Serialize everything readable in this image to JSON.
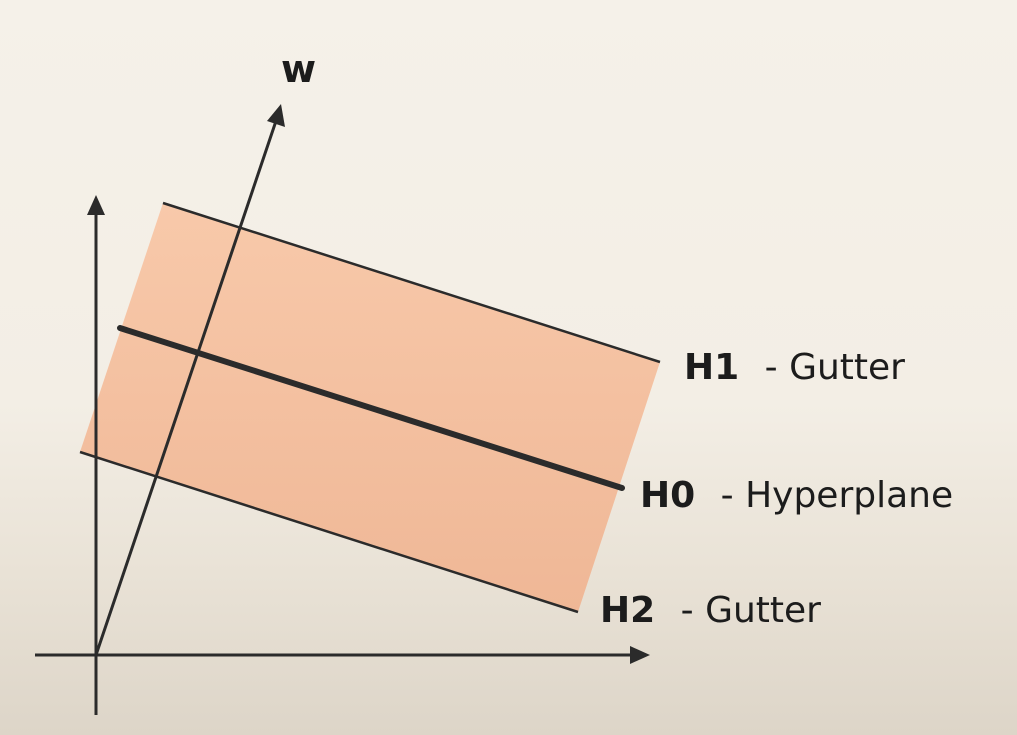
{
  "vector_label": "w",
  "lines": [
    {
      "id": "H1",
      "code": "H1",
      "desc": "- Gutter"
    },
    {
      "id": "H0",
      "code": "H0",
      "desc": "- Hyperplane"
    },
    {
      "id": "H2",
      "code": "H2",
      "desc": "- Gutter"
    }
  ],
  "colors": {
    "band_fill": "#f7c4a4",
    "line": "#2b2b2b",
    "background": "#f5f1e9"
  }
}
